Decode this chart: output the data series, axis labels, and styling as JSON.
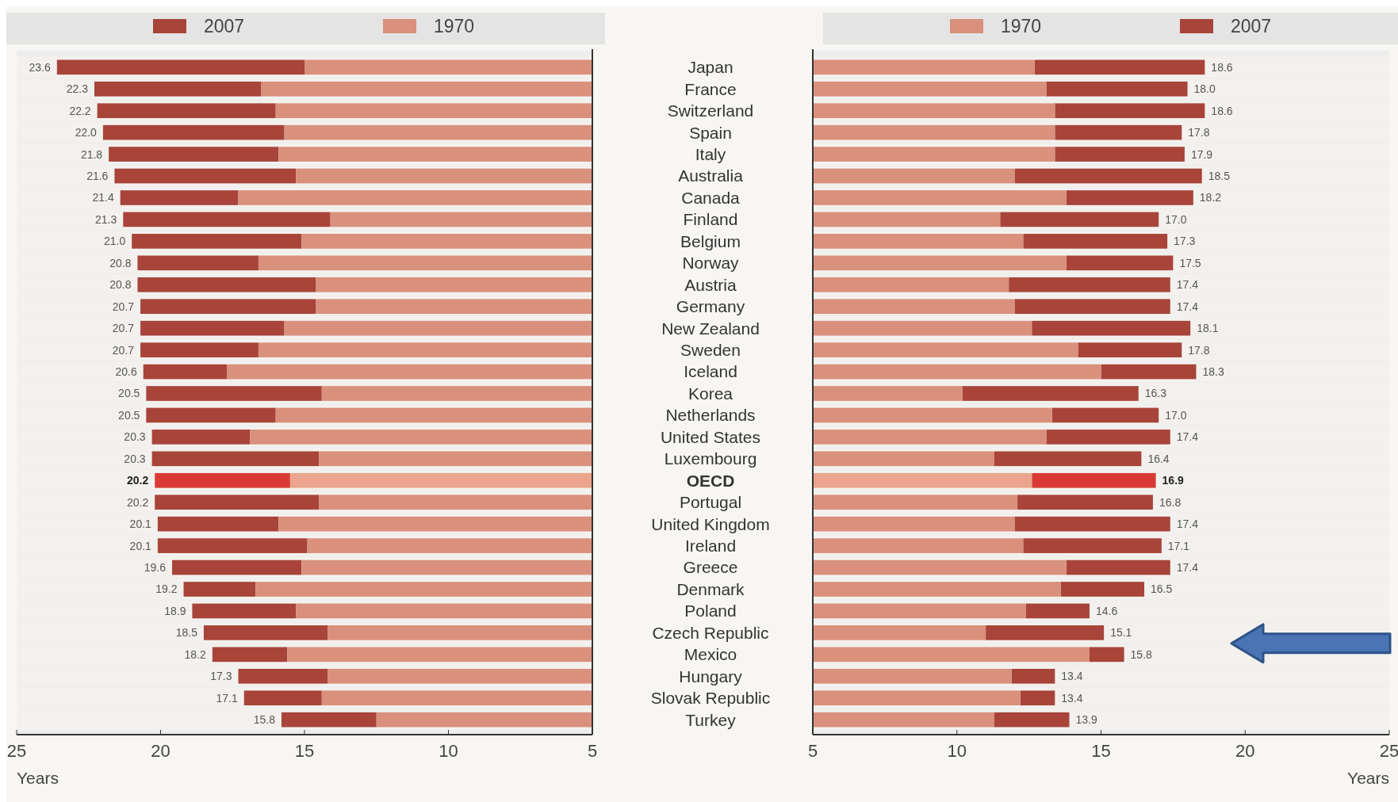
{
  "chart_data": [
    {
      "type": "bar",
      "orientation": "horizontal",
      "categories": [
        null,
        null,
        null,
        null,
        null,
        null,
        null,
        null,
        null,
        null,
        null,
        null,
        null,
        null,
        null,
        null,
        null,
        null,
        null,
        null,
        null,
        null,
        null,
        null,
        null,
        null,
        null,
        null,
        null,
        null,
        null
      ],
      "xlim": [
        25,
        5
      ],
      "xticks": [
        25,
        20,
        15,
        10,
        5
      ],
      "xlabel": "Years",
      "legend": "top",
      "series": [
        {
          "name": "2007",
          "color": "#a8443a",
          "colors": [
            "#a8443a",
            "#a8443a",
            "#a8443a",
            "#a8443a",
            "#a8443a",
            "#a8443a",
            "#a8443a",
            "#a8443a",
            "#a8443a",
            "#a8443a",
            "#a8443a",
            "#a8443a",
            "#a8443a",
            "#a8443a",
            "#a8443a",
            "#a8443a",
            "#a8443a",
            "#a8443a",
            "#a8443a",
            "#d93a35",
            "#a8443a",
            "#a8443a",
            "#a8443a",
            "#a8443a",
            "#a8443a",
            "#a8443a",
            "#a8443a",
            "#a8443a",
            "#a8443a",
            "#a8443a",
            "#a8443a"
          ],
          "base": [
            15.0,
            16.5,
            16.0,
            15.7,
            15.9,
            15.3,
            17.3,
            14.1,
            15.1,
            16.6,
            14.6,
            14.6,
            15.7,
            16.6,
            17.7,
            14.4,
            16.0,
            16.9,
            14.5,
            15.5,
            14.5,
            15.9,
            14.9,
            15.1,
            16.7,
            15.3,
            14.2,
            15.6,
            14.2,
            14.4,
            12.5
          ],
          "values": [
            8.6,
            5.8,
            6.2,
            6.3,
            5.9,
            6.3,
            4.1,
            7.2,
            5.9,
            4.2,
            6.2,
            6.1,
            5.0,
            4.1,
            2.9,
            6.1,
            4.5,
            3.4,
            5.8,
            4.7,
            5.7,
            4.2,
            5.2,
            4.5,
            2.5,
            3.6,
            4.3,
            2.6,
            3.1,
            2.7,
            3.3
          ],
          "value_labels": [
            "23.6",
            "22.3",
            "22.2",
            "22.0",
            "21.8",
            "21.6",
            "21.4",
            "21.3",
            "21.0",
            "20.8",
            "20.8",
            "20.7",
            "20.7",
            "20.7",
            "20.6",
            "20.5",
            "20.5",
            "20.3",
            "20.3",
            "20.2",
            "20.2",
            "20.1",
            "20.1",
            "19.6",
            "19.2",
            "18.9",
            "18.5",
            "18.2",
            "17.3",
            "17.1",
            "15.8"
          ]
        },
        {
          "name": "1970",
          "color": "#d9907c",
          "colors": [
            "#d9907c",
            "#d9907c",
            "#d9907c",
            "#d9907c",
            "#d9907c",
            "#d9907c",
            "#d9907c",
            "#d9907c",
            "#d9907c",
            "#d9907c",
            "#d9907c",
            "#d9907c",
            "#d9907c",
            "#d9907c",
            "#d9907c",
            "#d9907c",
            "#d9907c",
            "#d9907c",
            "#d9907c",
            "#eba58c",
            "#d9907c",
            "#d9907c",
            "#d9907c",
            "#d9907c",
            "#d9907c",
            "#d9907c",
            "#d9907c",
            "#d9907c",
            "#d9907c",
            "#d9907c",
            "#d9907c"
          ],
          "values": [
            15.0,
            16.5,
            16.0,
            15.7,
            15.9,
            15.3,
            17.3,
            14.1,
            15.1,
            16.6,
            14.6,
            14.6,
            15.7,
            16.6,
            17.7,
            14.4,
            16.0,
            16.9,
            14.5,
            15.5,
            14.5,
            15.9,
            14.9,
            15.1,
            16.7,
            15.3,
            14.2,
            15.6,
            14.2,
            14.4,
            12.5
          ]
        }
      ]
    },
    {
      "type": "bar",
      "orientation": "horizontal",
      "categories": [
        "Japan",
        "France",
        "Switzerland",
        "Spain",
        "Italy",
        "Australia",
        "Canada",
        "Finland",
        "Belgium",
        "Norway",
        "Austria",
        "Germany",
        "New Zealand",
        "Sweden",
        "Iceland",
        "Korea",
        "Netherlands",
        "United States",
        "Luxembourg",
        "OECD",
        "Portugal",
        "United Kingdom",
        "Ireland",
        "Greece",
        "Denmark",
        "Poland",
        "Czech Republic",
        "Mexico",
        "Hungary",
        "Slovak Republic",
        "Turkey"
      ],
      "xlim": [
        5,
        25
      ],
      "xticks": [
        5,
        10,
        15,
        20,
        25
      ],
      "xlabel": "Years",
      "legend": "top",
      "series": [
        {
          "name": "2007",
          "color": "#a8443a",
          "colors": [
            "#a8443a",
            "#a8443a",
            "#a8443a",
            "#a8443a",
            "#a8443a",
            "#a8443a",
            "#a8443a",
            "#a8443a",
            "#a8443a",
            "#a8443a",
            "#a8443a",
            "#a8443a",
            "#a8443a",
            "#a8443a",
            "#a8443a",
            "#a8443a",
            "#a8443a",
            "#a8443a",
            "#a8443a",
            "#d93a35",
            "#a8443a",
            "#a8443a",
            "#a8443a",
            "#a8443a",
            "#a8443a",
            "#a8443a",
            "#a8443a",
            "#a8443a",
            "#a8443a",
            "#a8443a",
            "#a8443a"
          ],
          "base": [
            12.7,
            13.1,
            13.4,
            13.4,
            13.4,
            12.0,
            13.8,
            11.5,
            12.3,
            13.8,
            11.8,
            12.0,
            12.6,
            14.2,
            15.0,
            10.2,
            13.3,
            13.1,
            11.3,
            12.6,
            12.1,
            12.0,
            12.3,
            13.8,
            13.6,
            12.4,
            11.0,
            14.6,
            11.9,
            12.2,
            11.3
          ],
          "values": [
            5.9,
            4.9,
            5.2,
            4.4,
            4.5,
            6.5,
            4.4,
            5.5,
            5.0,
            3.7,
            5.6,
            5.4,
            5.5,
            3.6,
            3.3,
            6.1,
            3.7,
            4.3,
            5.1,
            4.3,
            4.7,
            5.4,
            4.8,
            3.6,
            2.9,
            2.2,
            4.1,
            1.2,
            1.5,
            1.2,
            2.6
          ],
          "value_labels": [
            "18.6",
            "18.0",
            "18.6",
            "17.8",
            "17.9",
            "18.5",
            "18.2",
            "17.0",
            "17.3",
            "17.5",
            "17.4",
            "17.4",
            "18.1",
            "17.8",
            "18.3",
            "16.3",
            "17.0",
            "17.4",
            "16.4",
            "16.9",
            "16.8",
            "17.4",
            "17.1",
            "17.4",
            "16.5",
            "14.6",
            "15.1",
            "15.8",
            "13.4",
            "13.4",
            "13.9"
          ]
        },
        {
          "name": "1970",
          "color": "#d9907c",
          "colors": [
            "#d9907c",
            "#d9907c",
            "#d9907c",
            "#d9907c",
            "#d9907c",
            "#d9907c",
            "#d9907c",
            "#d9907c",
            "#d9907c",
            "#d9907c",
            "#d9907c",
            "#d9907c",
            "#d9907c",
            "#d9907c",
            "#d9907c",
            "#d9907c",
            "#d9907c",
            "#d9907c",
            "#d9907c",
            "#eba58c",
            "#d9907c",
            "#d9907c",
            "#d9907c",
            "#d9907c",
            "#d9907c",
            "#d9907c",
            "#d9907c",
            "#d9907c",
            "#d9907c",
            "#d9907c",
            "#d9907c"
          ],
          "values": [
            12.7,
            13.1,
            13.4,
            13.4,
            13.4,
            12.0,
            13.8,
            11.5,
            12.3,
            13.8,
            11.8,
            12.0,
            12.6,
            14.2,
            15.0,
            10.2,
            13.3,
            13.1,
            11.3,
            12.6,
            12.1,
            12.0,
            12.3,
            13.8,
            13.6,
            12.4,
            11.0,
            14.6,
            11.9,
            12.2,
            11.3
          ]
        }
      ]
    }
  ]
}
